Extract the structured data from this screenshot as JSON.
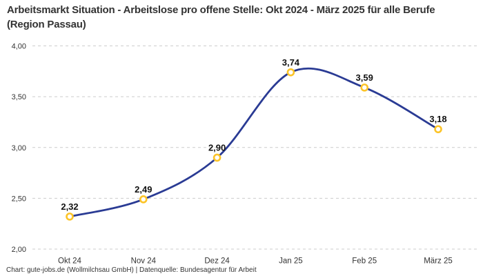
{
  "header": {
    "title": "Arbeitsmarkt Situation - Arbeitslose pro offene Stelle: Okt 2024 - März 2025 für alle Berufe (Region Passau)"
  },
  "footer": {
    "credit": "Chart: gute-jobs.de (Wollmilchsau GmbH) | Datenquelle: Bundesagentur für Arbeit"
  },
  "chart_data": {
    "type": "line",
    "title": "Arbeitsmarkt Situation - Arbeitslose pro offene Stelle: Okt 2024 - März 2025 für alle Berufe (Region Passau)",
    "categories": [
      "Okt 24",
      "Nov 24",
      "Dez 24",
      "Jan 25",
      "Feb 25",
      "März 25"
    ],
    "values": [
      2.32,
      2.49,
      2.9,
      3.74,
      3.59,
      3.18
    ],
    "value_labels": [
      "2,32",
      "2,49",
      "2,90",
      "3,74",
      "3,59",
      "3,18"
    ],
    "xlabel": "",
    "ylabel": "",
    "ylim": [
      2.0,
      4.0
    ],
    "y_ticks": {
      "values": [
        4.0,
        3.5,
        3.0,
        2.5,
        2.0
      ],
      "labels": [
        "4,00",
        "3,50",
        "3,00",
        "2,50",
        "2,00"
      ]
    },
    "grid": "horizontal-dashed",
    "legend": "none",
    "smooth": true,
    "colors": {
      "line": "#2a3b94",
      "marker_ring": "#fcc428",
      "marker_fill": "#ffffff",
      "grid": "#cccccc",
      "title": "#333333",
      "data_labels": "#111111",
      "axis_text": "#333333"
    }
  }
}
